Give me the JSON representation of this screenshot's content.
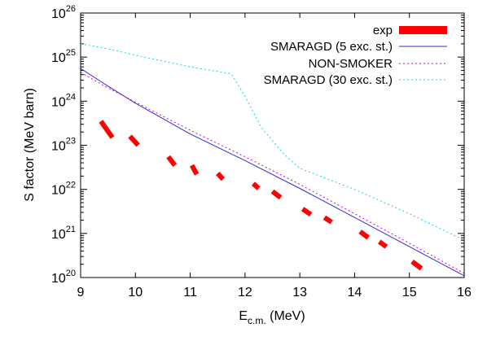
{
  "chart_data": {
    "type": "line",
    "xlabel": "E",
    "xlabel_sub": "c.m.",
    "xlabel_unit": " (MeV)",
    "ylabel": "S factor (MeV barn)",
    "xlim": [
      9,
      16
    ],
    "ylim": [
      1e+20,
      1e+26
    ],
    "yscale": "log",
    "grid": false,
    "legend_position": "top-right",
    "x_ticks": [
      9,
      10,
      11,
      12,
      13,
      14,
      15,
      16
    ],
    "y_ticks": [
      {
        "base": "10",
        "exp": "20",
        "value": 1e+20
      },
      {
        "base": "10",
        "exp": "21",
        "value": 1e+21
      },
      {
        "base": "10",
        "exp": "22",
        "value": 1e+22
      },
      {
        "base": "10",
        "exp": "23",
        "value": 1e+23
      },
      {
        "base": "10",
        "exp": "24",
        "value": 1e+24
      },
      {
        "base": "10",
        "exp": "25",
        "value": 1e+25
      },
      {
        "base": "10",
        "exp": "26",
        "value": 1e+26
      }
    ],
    "series": [
      {
        "name": "exp",
        "kind": "segments",
        "color": "#ff0000",
        "segments": [
          {
            "x0": 9.37,
            "y0": 3.5e+23,
            "x1": 9.58,
            "y1": 1.5e+23
          },
          {
            "x0": 9.9,
            "y0": 1.6e+23,
            "x1": 10.05,
            "y1": 1e+23
          },
          {
            "x0": 10.6,
            "y0": 5.5e+22,
            "x1": 10.72,
            "y1": 3.5e+22
          },
          {
            "x0": 11.03,
            "y0": 3.5e+22,
            "x1": 11.12,
            "y1": 2.2e+22
          },
          {
            "x0": 11.5,
            "y0": 2.3e+22,
            "x1": 11.6,
            "y1": 1.7e+22
          },
          {
            "x0": 12.15,
            "y0": 1.35e+22,
            "x1": 12.25,
            "y1": 1.05e+22
          },
          {
            "x0": 12.5,
            "y0": 9e+21,
            "x1": 12.65,
            "y1": 6.5e+21
          },
          {
            "x0": 13.05,
            "y0": 3.6e+21,
            "x1": 13.2,
            "y1": 2.7e+21
          },
          {
            "x0": 13.45,
            "y0": 2.3e+21,
            "x1": 13.58,
            "y1": 1.8e+21
          },
          {
            "x0": 14.1,
            "y0": 1.1e+21,
            "x1": 14.25,
            "y1": 8e+20
          },
          {
            "x0": 14.45,
            "y0": 6.5e+20,
            "x1": 14.58,
            "y1": 5e+20
          },
          {
            "x0": 15.05,
            "y0": 2.3e+20,
            "x1": 15.22,
            "y1": 1.6e+20
          }
        ]
      },
      {
        "name": "SMARAGD (5 exc. st.)",
        "kind": "line",
        "color": "#2e2ed6",
        "dash": "",
        "x": [
          9,
          9.5,
          10,
          11,
          12,
          13,
          14,
          15,
          16
        ],
        "y": [
          5.5e+24,
          2.2e+24,
          9e+23,
          1.8e+23,
          4.5e+22,
          1.05e+22,
          2.3e+21,
          5e+20,
          1.1e+20
        ]
      },
      {
        "name": "NON-SMOKER",
        "kind": "line",
        "color": "#d000d0",
        "dash": "2,3",
        "x": [
          9,
          9.5,
          10,
          11,
          12,
          13,
          14,
          15,
          16
        ],
        "y": [
          4.5e+24,
          2e+24,
          9.5e+23,
          2.2e+23,
          5.5e+22,
          1.3e+22,
          2.8e+21,
          6e+20,
          1.25e+20
        ]
      },
      {
        "name": "SMARAGD (30 exc. st.)",
        "kind": "line",
        "color": "#00dede",
        "dash": "2,3",
        "x": [
          9,
          9.5,
          10,
          11,
          11.75,
          12,
          12.3,
          12.7,
          13,
          14,
          15,
          16
        ],
        "y": [
          2e+25,
          1.55e+25,
          1.1e+25,
          6e+24,
          4.2e+24,
          1.3e+24,
          2.5e+23,
          6.5e+22,
          3e+22,
          1e+22,
          2.8e+21,
          7e+20
        ]
      }
    ]
  }
}
